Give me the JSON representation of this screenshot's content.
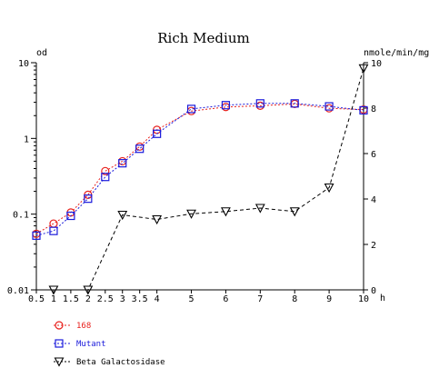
{
  "chart_data": {
    "type": "line",
    "title": "Rich Medium",
    "y_left_label": "od",
    "y_right_label": "nmole/min/mg",
    "x_unit_label": "h",
    "x_ticks": [
      "0.5",
      "1",
      "1.5",
      "2",
      "2.5",
      "3",
      "3.5",
      "4",
      "5",
      "6",
      "7",
      "8",
      "9",
      "10"
    ],
    "y_left_scale": "log",
    "y_left_ticks": [
      {
        "value": 10,
        "label": "10"
      },
      {
        "value": 1,
        "label": "1"
      },
      {
        "value": 0.1,
        "label": "0.1"
      },
      {
        "value": 0.01,
        "label": "0.01"
      }
    ],
    "y_left_range": [
      0.01,
      10
    ],
    "y_right_ticks": [
      {
        "value": 10,
        "label": "10"
      },
      {
        "value": 8,
        "label": "8"
      },
      {
        "value": 6,
        "label": "6"
      },
      {
        "value": 4,
        "label": "4"
      },
      {
        "value": 2,
        "label": "2"
      },
      {
        "value": 0,
        "label": "0"
      }
    ],
    "y_right_range": [
      0,
      10
    ],
    "grid": false,
    "legend_position": "bottom-left",
    "series": [
      {
        "name": "168",
        "axis": "left",
        "marker": "circle",
        "color": "#e8201c",
        "line_dash": "2,2",
        "x": [
          "0.5",
          "1",
          "1.5",
          "2",
          "2.5",
          "3",
          "3.5",
          "4",
          "5",
          "6",
          "7",
          "8",
          "9",
          "10"
        ],
        "values": [
          0.055,
          0.075,
          0.105,
          0.18,
          0.37,
          0.5,
          0.78,
          1.3,
          2.3,
          2.6,
          2.7,
          2.85,
          2.5,
          2.4
        ]
      },
      {
        "name": "Mutant",
        "axis": "left",
        "marker": "square",
        "color": "#1a1adb",
        "line_dash": "2,2",
        "x": [
          "0.5",
          "1",
          "1.5",
          "2",
          "2.5",
          "3",
          "3.5",
          "4",
          "5",
          "6",
          "7",
          "8",
          "9",
          "10"
        ],
        "values": [
          0.052,
          0.06,
          0.095,
          0.16,
          0.31,
          0.47,
          0.73,
          1.15,
          2.45,
          2.75,
          2.9,
          2.9,
          2.65,
          2.35
        ]
      },
      {
        "name": "Beta Galactosidase",
        "axis": "right",
        "marker": "triangle-down",
        "color": "#000000",
        "line_dash": "4,3",
        "x": [
          "1",
          "2",
          "3",
          "4",
          "5",
          "6",
          "7",
          "8",
          "9",
          "10"
        ],
        "values": [
          0,
          0,
          3.3,
          3.1,
          3.35,
          3.45,
          3.6,
          3.45,
          4.5,
          9.75
        ]
      }
    ]
  }
}
